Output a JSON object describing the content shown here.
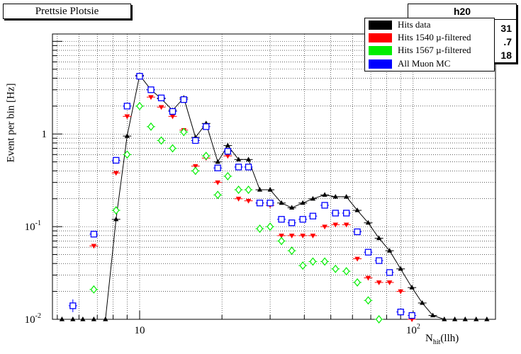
{
  "title_box": {
    "text": "Prettsie Plotsie"
  },
  "stats_box": {
    "title": "h20",
    "values": [
      "31",
      ".7",
      "18"
    ]
  },
  "legend": {
    "entries": [
      {
        "label": "Hits data",
        "color": "#000000"
      },
      {
        "label": "Hits 1540 µ-filtered",
        "color": "#ff0000"
      },
      {
        "label": "Hits 1567 µ-filtered",
        "color": "#00ee00"
      },
      {
        "label": "All Muon MC",
        "color": "#0000ff"
      }
    ]
  },
  "chart_data": {
    "type": "scatter",
    "x_scale": "log",
    "y_scale": "log",
    "xlim": [
      4.8,
      200
    ],
    "ylim": [
      0.01,
      12
    ],
    "grid": true,
    "ylabel": "Event per bin [Hz]",
    "xlabel_main": "N",
    "xlabel_sub": "hit",
    "xlabel_suffix": "(llh)",
    "x_ticks": [
      {
        "value": 10,
        "label": "10"
      },
      {
        "value": 100,
        "label": "10",
        "sup": "2"
      }
    ],
    "y_ticks": [
      {
        "value": 0.01,
        "label": "10",
        "sup": "-2"
      },
      {
        "value": 0.1,
        "label": "10",
        "sup": "-1"
      },
      {
        "value": 1,
        "label": "1"
      }
    ],
    "series": [
      {
        "name": "Hits data",
        "color": "#000000",
        "marker": "triangle-up",
        "line": true,
        "points": [
          [
            5.2,
            0.01
          ],
          [
            5.7,
            0.01
          ],
          [
            6.2,
            0.01
          ],
          [
            6.8,
            0.01
          ],
          [
            7.5,
            0.01
          ],
          [
            8.2,
            0.12
          ],
          [
            9.0,
            0.95
          ],
          [
            10.0,
            4.3
          ],
          [
            11.0,
            3.0
          ],
          [
            12.0,
            2.4
          ],
          [
            13.2,
            1.8
          ],
          [
            14.5,
            2.45
          ],
          [
            16.0,
            0.92
          ],
          [
            17.5,
            1.3
          ],
          [
            19.3,
            0.5
          ],
          [
            21.0,
            0.75
          ],
          [
            23.0,
            0.53
          ],
          [
            25.0,
            0.53
          ],
          [
            27.5,
            0.25
          ],
          [
            30.0,
            0.25
          ],
          [
            33.0,
            0.18
          ],
          [
            36.0,
            0.16
          ],
          [
            39.5,
            0.18
          ],
          [
            43.0,
            0.2
          ],
          [
            47.5,
            0.22
          ],
          [
            52.0,
            0.21
          ],
          [
            57.0,
            0.21
          ],
          [
            62.5,
            0.15
          ],
          [
            68.5,
            0.11
          ],
          [
            75.0,
            0.075
          ],
          [
            82.0,
            0.055
          ],
          [
            90.0,
            0.035
          ],
          [
            99.0,
            0.022
          ],
          [
            108.0,
            0.015
          ],
          [
            118.0,
            0.011
          ],
          [
            130.0,
            0.01
          ],
          [
            142.0,
            0.01
          ],
          [
            155.0,
            0.01
          ],
          [
            170.0,
            0.01
          ],
          [
            186.0,
            0.01
          ]
        ]
      },
      {
        "name": "Hits 1540 µ-filtered",
        "color": "#ff0000",
        "marker": "triangle-down",
        "line": false,
        "points": [
          [
            6.8,
            0.062
          ],
          [
            8.2,
            0.38
          ],
          [
            9.0,
            1.55
          ],
          [
            10.0,
            4.2
          ],
          [
            11.0,
            2.5
          ],
          [
            12.0,
            1.95
          ],
          [
            13.2,
            1.55
          ],
          [
            14.5,
            1.1
          ],
          [
            16.0,
            0.45
          ],
          [
            17.5,
            0.55
          ],
          [
            19.3,
            0.3
          ],
          [
            21.0,
            0.58
          ],
          [
            23.0,
            0.2
          ],
          [
            25.0,
            0.19
          ],
          [
            27.5,
            0.18
          ],
          [
            30.0,
            0.17
          ],
          [
            33.0,
            0.08
          ],
          [
            36.0,
            0.08
          ],
          [
            39.5,
            0.08
          ],
          [
            43.0,
            0.08
          ],
          [
            47.5,
            0.1
          ],
          [
            52.0,
            0.105
          ],
          [
            57.0,
            0.105
          ],
          [
            62.5,
            0.045
          ],
          [
            68.5,
            0.028
          ],
          [
            75.0,
            0.025
          ],
          [
            82.0,
            0.025
          ],
          [
            90.0,
            0.02
          ],
          [
            99.0,
            0.01
          ]
        ]
      },
      {
        "name": "Hits 1567 µ-filtered",
        "color": "#00ee00",
        "marker": "diamond-open",
        "line": false,
        "points": [
          [
            6.8,
            0.021
          ],
          [
            8.2,
            0.15
          ],
          [
            9.0,
            0.6
          ],
          [
            10.0,
            2.0
          ],
          [
            11.0,
            1.2
          ],
          [
            12.0,
            0.85
          ],
          [
            13.2,
            0.7
          ],
          [
            14.5,
            1.05
          ],
          [
            16.0,
            0.4
          ],
          [
            17.5,
            0.58
          ],
          [
            19.3,
            0.22
          ],
          [
            21.0,
            0.35
          ],
          [
            23.0,
            0.25
          ],
          [
            25.0,
            0.25
          ],
          [
            27.5,
            0.095
          ],
          [
            30.0,
            0.1
          ],
          [
            33.0,
            0.07
          ],
          [
            36.0,
            0.055
          ],
          [
            39.5,
            0.038
          ],
          [
            43.0,
            0.042
          ],
          [
            47.5,
            0.042
          ],
          [
            52.0,
            0.035
          ],
          [
            57.0,
            0.033
          ],
          [
            62.5,
            0.025
          ],
          [
            68.5,
            0.016
          ],
          [
            75.0,
            0.01
          ]
        ]
      },
      {
        "name": "All Muon MC",
        "color": "#0000ff",
        "marker": "square-open",
        "line": false,
        "points": [
          [
            5.7,
            0.014
          ],
          [
            6.8,
            0.083
          ],
          [
            8.2,
            0.52
          ],
          [
            9.0,
            2.0
          ],
          [
            10.0,
            4.2
          ],
          [
            11.0,
            3.0
          ],
          [
            12.0,
            2.45
          ],
          [
            13.2,
            1.75
          ],
          [
            14.5,
            2.35
          ],
          [
            16.0,
            0.85
          ],
          [
            17.5,
            1.2
          ],
          [
            19.3,
            0.43
          ],
          [
            21.0,
            0.65
          ],
          [
            23.0,
            0.44
          ],
          [
            25.0,
            0.44
          ],
          [
            27.5,
            0.18
          ],
          [
            30.0,
            0.18
          ],
          [
            33.0,
            0.12
          ],
          [
            36.0,
            0.11
          ],
          [
            39.5,
            0.12
          ],
          [
            43.0,
            0.13
          ],
          [
            47.5,
            0.17
          ],
          [
            52.0,
            0.14
          ],
          [
            57.0,
            0.14
          ],
          [
            62.5,
            0.088
          ],
          [
            68.5,
            0.053
          ],
          [
            75.0,
            0.043
          ],
          [
            82.0,
            0.032
          ],
          [
            90.0,
            0.012
          ],
          [
            99.0,
            0.011
          ]
        ]
      }
    ]
  }
}
